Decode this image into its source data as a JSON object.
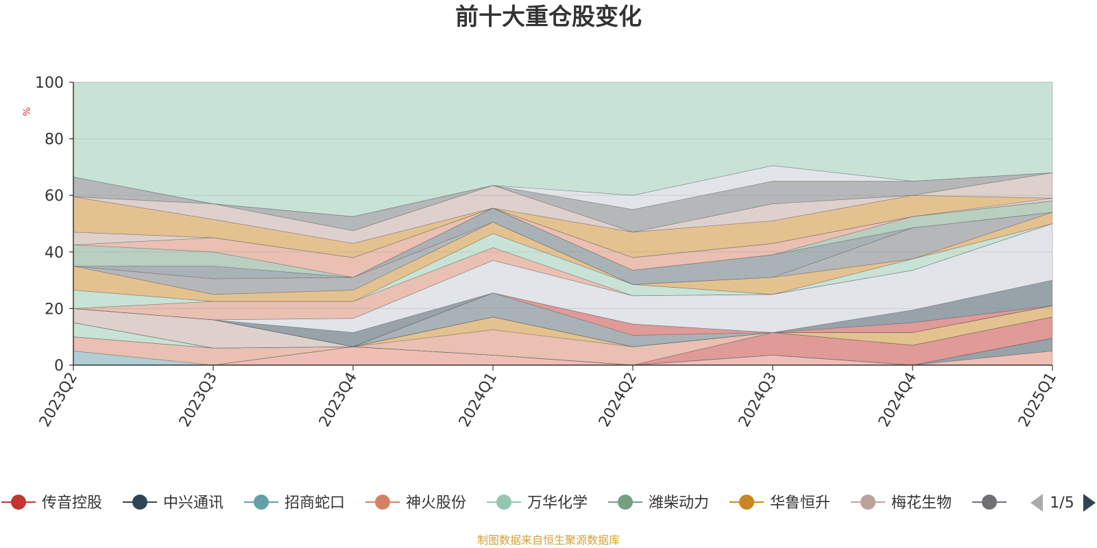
{
  "chart_data": {
    "type": "area",
    "title": "前十大重仓股变化",
    "ylabel": "%",
    "ylim": [
      0,
      100
    ],
    "y_ticks": [
      "0",
      "20",
      "40",
      "60",
      "80",
      "100"
    ],
    "categories": [
      "2023Q2",
      "2023Q3",
      "2023Q4",
      "2024Q1",
      "2024Q2",
      "2024Q3",
      "2024Q4",
      "2025Q1"
    ],
    "boundaries": [
      [
        0,
        0,
        0,
        0,
        0,
        0,
        0,
        0
      ],
      [
        0,
        0,
        6.5,
        3.5,
        0,
        3.5,
        0,
        5
      ],
      [
        0,
        0,
        6.5,
        3.5,
        0,
        3.5,
        0,
        9.5
      ],
      [
        5,
        0,
        6.5,
        3.5,
        0,
        3.5,
        0,
        9.5
      ],
      [
        10,
        6,
        6.5,
        3.5,
        0,
        3.5,
        0,
        9.5
      ],
      [
        10,
        6,
        6.5,
        3.5,
        0,
        11.5,
        7,
        17
      ],
      [
        15,
        6,
        6.5,
        3.5,
        0,
        11.5,
        7,
        17
      ],
      [
        15,
        6,
        6.5,
        12.5,
        6.5,
        11.5,
        7,
        17
      ],
      [
        15,
        6,
        6.5,
        17,
        6.5,
        11.5,
        11.5,
        21
      ],
      [
        20,
        16,
        6.5,
        17,
        6.5,
        11.5,
        11.5,
        21
      ],
      [
        20,
        16,
        6.5,
        17,
        6.5,
        11.5,
        11.5,
        21
      ],
      [
        20,
        16,
        6.5,
        25.5,
        10.5,
        11.5,
        11.5,
        21
      ],
      [
        20,
        16,
        6.5,
        25.5,
        14.5,
        11.5,
        15,
        21
      ],
      [
        20,
        16,
        11.5,
        25.5,
        14.5,
        11.5,
        19.5,
        30
      ],
      [
        20,
        16,
        16.5,
        37,
        24.5,
        25,
        33.5,
        50
      ],
      [
        20,
        22.5,
        22.5,
        41.5,
        24.5,
        25,
        33.5,
        50
      ],
      [
        26.5,
        22.5,
        22.5,
        46.5,
        28.5,
        25,
        37.5,
        50
      ],
      [
        35,
        25,
        26.5,
        50.5,
        28.5,
        31,
        37.5,
        54
      ],
      [
        35,
        30.5,
        31,
        50.5,
        28.5,
        31,
        48.5,
        54
      ],
      [
        35,
        35,
        31,
        55.5,
        33.5,
        39,
        48.5,
        54
      ],
      [
        42.5,
        40,
        31,
        55.5,
        33.5,
        39,
        52.5,
        58
      ],
      [
        42.5,
        45,
        38,
        55.5,
        38,
        43,
        52.5,
        58
      ],
      [
        47,
        45,
        38,
        55.5,
        38,
        43,
        52.5,
        59
      ],
      [
        59.5,
        51.5,
        43,
        55.5,
        47,
        51,
        60,
        59
      ],
      [
        59.5,
        57,
        47.5,
        63.5,
        47,
        57,
        60,
        68
      ],
      [
        66.5,
        57,
        52.5,
        63.5,
        55,
        65,
        65,
        68
      ],
      [
        66.5,
        57,
        52.5,
        63.5,
        60,
        70.5,
        65,
        68
      ],
      [
        100,
        100,
        100,
        100,
        100,
        100,
        100,
        100
      ]
    ],
    "band_colors": [
      "#e07f6e",
      "#2f4554",
      "#61a0a8",
      "#d48265",
      "#c23531",
      "#91c7ae",
      "#d48265",
      "#ca8622",
      "#bda29a",
      "#6e7074",
      "#546570",
      "#c23531",
      "#2f4554",
      "#c4ccd3",
      "#d48265",
      "#91c7ae",
      "#ca8622",
      "#6e7074",
      "#546570",
      "#749f83",
      "#d48265",
      "#bda29a",
      "#ca8622",
      "#bda29a",
      "#6e7074",
      "#c4ccd3",
      "#91c7ae",
      "#3c7f5c"
    ],
    "series": [
      {
        "name": "传音控股",
        "color": "#c23531"
      },
      {
        "name": "中兴通讯",
        "color": "#2f4554"
      },
      {
        "name": "招商蛇口",
        "color": "#61a0a8"
      },
      {
        "name": "神火股份",
        "color": "#d48265"
      },
      {
        "name": "万华化学",
        "color": "#91c7ae"
      },
      {
        "name": "潍柴动力",
        "color": "#749f83"
      },
      {
        "name": "华鲁恒升",
        "color": "#ca8622"
      },
      {
        "name": "梅花生物",
        "color": "#bda29a"
      },
      {
        "name": "",
        "color": "#6e7074"
      }
    ],
    "legend_page": "1/5",
    "legend_position": "bottom",
    "grid": true
  },
  "source_note": "制图数据来自恒生聚源数据库"
}
